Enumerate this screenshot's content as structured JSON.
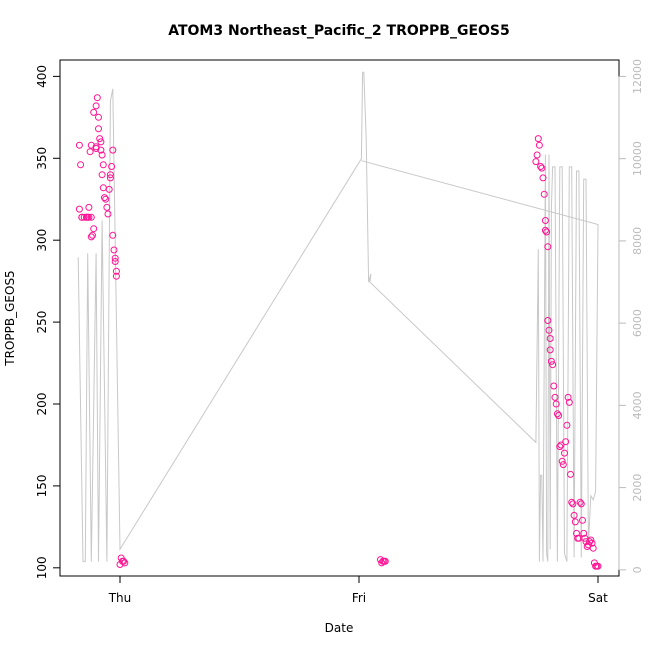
{
  "chart_data": {
    "type": "scatter",
    "title": "ATOM3 Northeast_Pacific_2 TROPPB_GEOS5",
    "xlabel": "Date",
    "ylabel": "TROPPB_GEOS5",
    "x_ticks": [
      "Thu",
      "Fri",
      "Sat"
    ],
    "x_range_days": [
      -0.2,
      2.02
    ],
    "ylim": [
      95,
      410
    ],
    "y_ticks": [
      100,
      150,
      200,
      250,
      300,
      350,
      400
    ],
    "y2lim": [
      -150,
      12400
    ],
    "y2_ticks": [
      0,
      2000,
      4000,
      6000,
      8000,
      10000,
      12000
    ],
    "grid": false,
    "series": [
      {
        "kind": "points",
        "color": "#ff1493",
        "x_days": [
          -0.17,
          -0.165,
          -0.17,
          -0.16,
          -0.14,
          -0.13,
          -0.135,
          -0.12,
          -0.115,
          -0.11,
          -0.1,
          -0.1,
          -0.125,
          -0.12,
          -0.11,
          -0.1,
          -0.095,
          -0.09,
          -0.09,
          -0.085,
          -0.08,
          -0.08,
          -0.075,
          -0.07,
          -0.075,
          -0.07,
          -0.065,
          -0.06,
          -0.055,
          -0.05,
          -0.045,
          -0.04,
          -0.04,
          -0.035,
          -0.03,
          -0.03,
          -0.025,
          -0.02,
          -0.02,
          -0.015,
          -0.015,
          -0.16,
          -0.15,
          -0.14,
          -0.13,
          -0.12,
          0.0,
          0.005,
          0.01,
          0.015,
          0.02,
          1.74,
          1.745,
          1.75,
          1.755,
          1.76,
          1.765,
          1.77,
          1.775,
          1.78,
          1.78,
          1.785,
          1.79,
          1.79,
          1.795,
          1.8,
          1.8,
          1.805,
          1.81,
          1.815,
          1.82,
          1.825,
          1.83,
          1.835,
          1.84,
          1.845,
          1.85,
          1.855,
          1.86,
          1.865,
          1.87,
          1.875,
          1.88,
          1.885,
          1.89,
          1.895,
          1.9,
          1.905,
          1.91,
          1.915,
          1.92,
          1.925,
          1.93,
          1.935,
          1.94,
          1.945,
          1.95,
          1.955,
          1.96,
          1.965,
          1.97,
          1.975,
          1.98,
          1.985,
          1.99,
          1.995,
          2.0,
          1.09,
          1.095,
          1.1,
          1.105,
          1.11
        ],
        "y_values": [
          358,
          346,
          319,
          314,
          314,
          320,
          314,
          302,
          303,
          307,
          357,
          356,
          354,
          358,
          378,
          382,
          387,
          375,
          368,
          362,
          360,
          355,
          352,
          346,
          340,
          332,
          326,
          325,
          320,
          316,
          331,
          338,
          340,
          345,
          355,
          303,
          294,
          289,
          287,
          281,
          278,
          314,
          314,
          314,
          314,
          314,
          102,
          106,
          104,
          104,
          103,
          348,
          352,
          362,
          358,
          345,
          344,
          338,
          328,
          312,
          306,
          305,
          296,
          251,
          245,
          240,
          233,
          226,
          224,
          211,
          204,
          200,
          194,
          193,
          174,
          175,
          165,
          163,
          170,
          177,
          187,
          204,
          201,
          157,
          140,
          139,
          132,
          128,
          121,
          118,
          118,
          140,
          139,
          129,
          121,
          118,
          116,
          113,
          114,
          116,
          117,
          115,
          112,
          103,
          101,
          101,
          101,
          105,
          103,
          104,
          104,
          104
        ]
      },
      {
        "kind": "line",
        "axis": "right",
        "color": "#c8c8c8",
        "x_days": [
          -0.175,
          -0.155,
          -0.145,
          -0.135,
          -0.12,
          -0.1,
          -0.09,
          -0.075,
          -0.055,
          -0.04,
          -0.03,
          0.0,
          1.01,
          1.015,
          1.02,
          1.03,
          1.04,
          1.05,
          1.045,
          1.74,
          1.75,
          1.755,
          1.76,
          1.765,
          1.77,
          1.775,
          1.78,
          1.785,
          1.79,
          1.795,
          1.8,
          1.805,
          1.81,
          1.82,
          1.83,
          1.84,
          1.85,
          1.86,
          1.87,
          1.88,
          1.89,
          1.9,
          1.91,
          1.92,
          1.93,
          1.94,
          1.95,
          1.96,
          1.97,
          1.98,
          1.99,
          2.0,
          1.01
        ],
        "y_values": [
          7600,
          200,
          200,
          7700,
          200,
          7700,
          200,
          8500,
          200,
          11400,
          11700,
          500,
          10000,
          12100,
          12100,
          10500,
          7000,
          7200,
          7000,
          3100,
          7800,
          200,
          2300,
          2300,
          200,
          5100,
          10100,
          400,
          200,
          10100,
          500,
          8800,
          9800,
          9800,
          200,
          9800,
          9800,
          400,
          200,
          9800,
          9800,
          300,
          9700,
          9700,
          300,
          9500,
          9500,
          600,
          1800,
          1700,
          1900,
          8400,
          9950
        ]
      }
    ]
  }
}
